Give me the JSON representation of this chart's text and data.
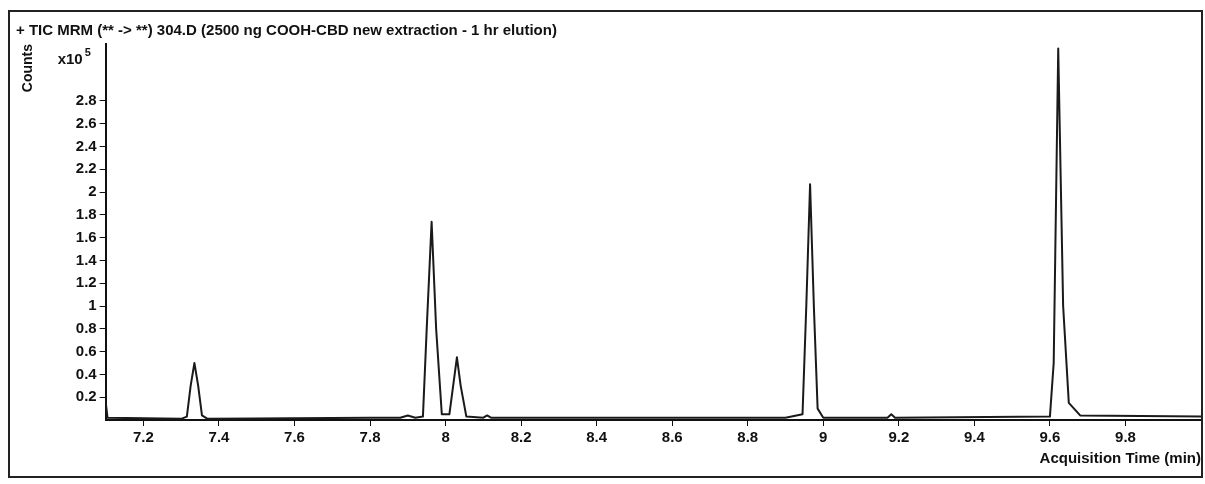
{
  "chart_data": {
    "type": "line",
    "title": "+ TIC MRM (** -> **) 304.D (2500 ng COOH-CBD new extraction - 1 hr elution)",
    "xlabel": "Acquisition Time (min)",
    "ylabel": "Counts",
    "annotations": [
      "x10$^{5}$"
    ],
    "x": [
      7.1,
      7.105,
      7.3,
      7.315,
      7.325,
      7.335,
      7.345,
      7.355,
      7.37,
      7.8,
      7.88,
      7.9,
      7.92,
      7.94,
      7.95,
      7.963,
      7.975,
      7.99,
      8.01,
      8.02,
      8.03,
      8.04,
      8.055,
      8.1,
      8.11,
      8.12,
      8.4,
      8.9,
      8.945,
      8.955,
      8.965,
      8.975,
      8.985,
      9.0,
      9.17,
      9.18,
      9.19,
      9.6,
      9.61,
      9.622,
      9.635,
      9.65,
      9.68,
      10.0
    ],
    "values": [
      0.16,
      0.02,
      0.01,
      0.03,
      0.3,
      0.5,
      0.3,
      0.04,
      0.01,
      0.02,
      0.02,
      0.04,
      0.02,
      0.03,
      0.8,
      1.74,
      0.8,
      0.05,
      0.05,
      0.3,
      0.55,
      0.3,
      0.03,
      0.02,
      0.04,
      0.02,
      0.02,
      0.02,
      0.05,
      1.0,
      2.07,
      1.0,
      0.1,
      0.02,
      0.02,
      0.05,
      0.02,
      0.03,
      0.5,
      3.26,
      1.0,
      0.15,
      0.04,
      0.03
    ],
    "color": "#1a1a1a",
    "xlim": [
      7.1,
      10.0
    ],
    "ylim": [
      0,
      3.3
    ],
    "xticks": [
      7.2,
      7.4,
      7.6,
      7.8,
      8,
      8.2,
      8.4,
      8.6,
      8.8,
      9,
      9.2,
      9.4,
      9.6,
      9.8
    ],
    "yticks": [
      0.2,
      0.4,
      0.6,
      0.8,
      1,
      1.2,
      1.4,
      1.6,
      1.8,
      2,
      2.2,
      2.4,
      2.6,
      2.8
    ],
    "grid": false,
    "legend": false,
    "marker": "none",
    "line_style": "solid"
  }
}
